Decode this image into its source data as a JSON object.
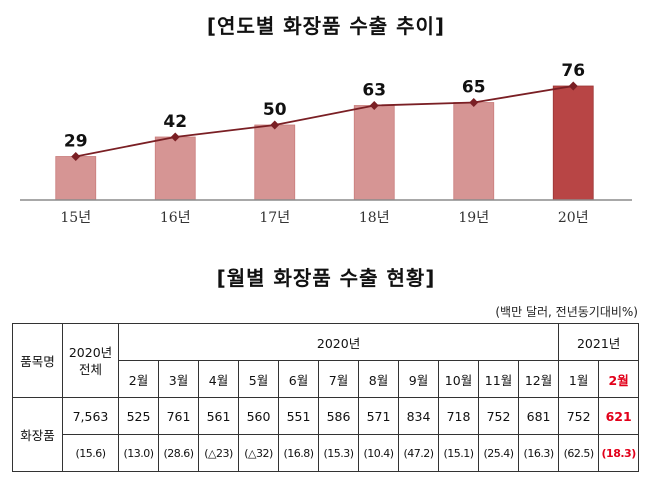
{
  "chart_data": {
    "type": "bar",
    "title": "[연도별 화장품 수출 추이]",
    "categories": [
      "15년",
      "16년",
      "17년",
      "18년",
      "19년",
      "20년"
    ],
    "values": [
      29,
      42,
      50,
      63,
      65,
      76
    ],
    "trend_line": true,
    "ylim": [
      0,
      80
    ],
    "colors": {
      "bar": "#d69594",
      "bar_highlight": "#b84545",
      "line": "#7a1f24",
      "axis": "#8c8c8c"
    },
    "grid": false,
    "legend": "none"
  },
  "table": {
    "title": "[월별 화장품 수출 현황]",
    "unit": "(백만 달러, 전년동기대비%)",
    "col_item": "품목명",
    "col_2020_total_line1": "2020년",
    "col_2020_total_line2": "전체",
    "col_2020": "2020년",
    "col_2021": "2021년",
    "months": [
      "2월",
      "3월",
      "4월",
      "5월",
      "6월",
      "7월",
      "8월",
      "9월",
      "10월",
      "11월",
      "12월",
      "1월",
      "2월"
    ],
    "row_label": "화장품",
    "values": [
      "7,563",
      "525",
      "761",
      "561",
      "560",
      "551",
      "586",
      "571",
      "834",
      "718",
      "752",
      "681",
      "752",
      "621"
    ],
    "growth": [
      "(15.6)",
      "(13.0)",
      "(28.6)",
      "(△23)",
      "(△32)",
      "(16.8)",
      "(15.3)",
      "(10.4)",
      "(47.2)",
      "(15.1)",
      "(25.4)",
      "(16.3)",
      "(62.5)",
      "(18.3)"
    ]
  }
}
